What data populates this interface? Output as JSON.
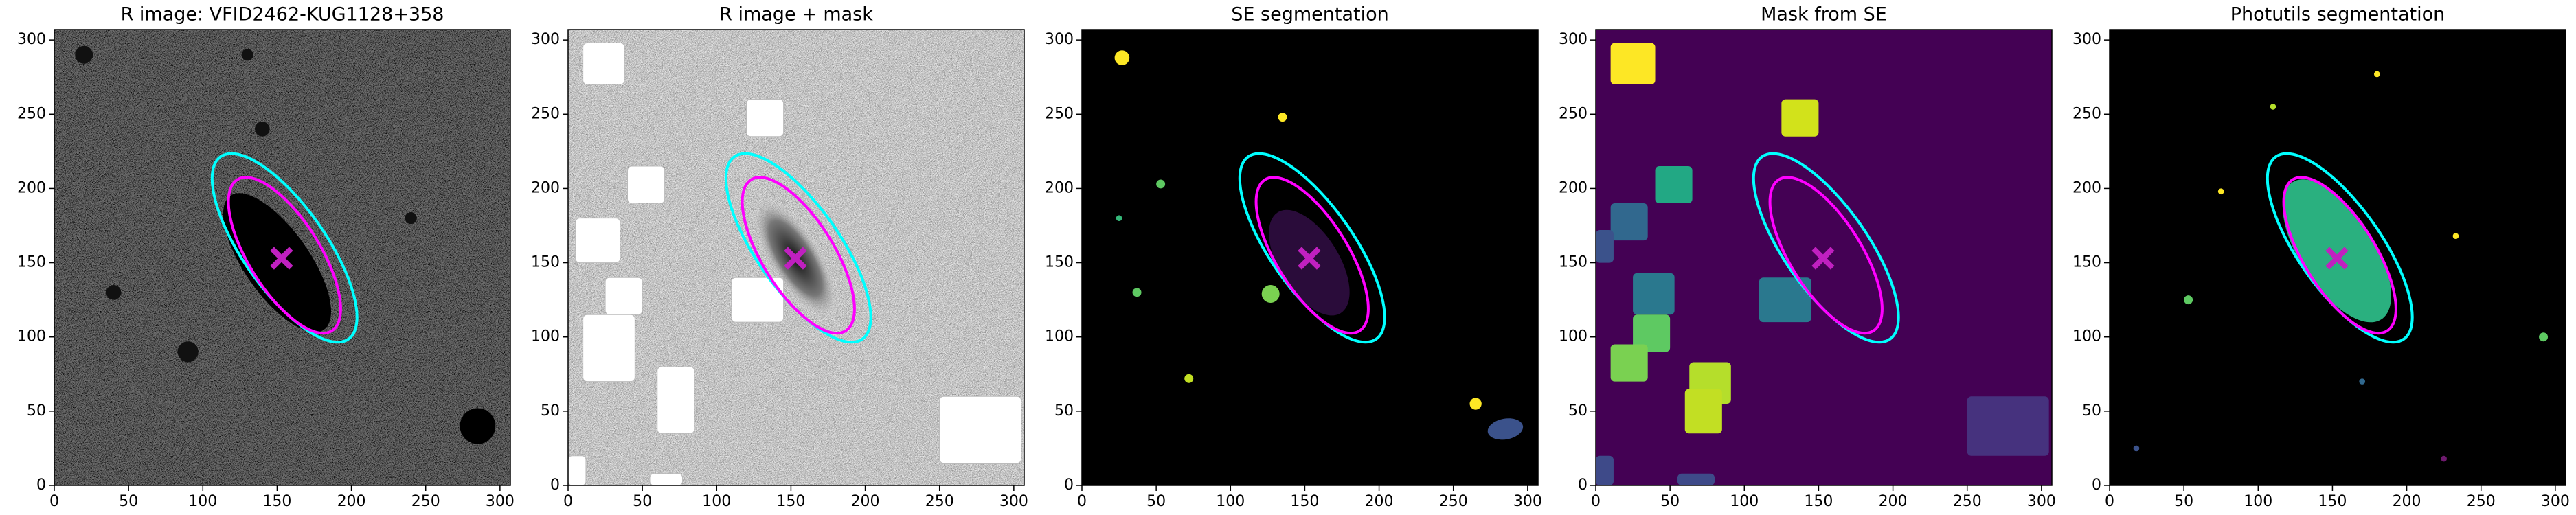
{
  "chart_data": [
    {
      "type": "image",
      "title": "R image: VFID2462-KUG1128+358",
      "background": "#6e6e6e",
      "xlim": [
        0,
        307
      ],
      "ylim": [
        0,
        307
      ],
      "xticks": [
        0,
        50,
        100,
        150,
        200,
        250,
        300
      ],
      "yticks": [
        0,
        50,
        100,
        150,
        200,
        250,
        300
      ],
      "ellipses": [
        {
          "color": "#00ffff",
          "cx": 155,
          "cy": 160,
          "a": 75,
          "b": 28,
          "angle": -55
        },
        {
          "color": "#ff00ff",
          "cx": 155,
          "cy": 155,
          "a": 60,
          "b": 24,
          "angle": -58
        }
      ],
      "marker": {
        "x": 153,
        "y": 153,
        "color": "#c020c0"
      }
    },
    {
      "type": "image",
      "title": "R image + mask",
      "background": "#e6e6e6",
      "xlim": [
        0,
        307
      ],
      "ylim": [
        0,
        307
      ],
      "xticks": [
        0,
        50,
        100,
        150,
        200,
        250,
        300
      ],
      "yticks": [
        0,
        50,
        100,
        150,
        200,
        250,
        300
      ],
      "ellipses": [
        {
          "color": "#00ffff",
          "cx": 155,
          "cy": 160,
          "a": 75,
          "b": 28,
          "angle": -55
        },
        {
          "color": "#ff00ff",
          "cx": 155,
          "cy": 155,
          "a": 60,
          "b": 24,
          "angle": -58
        }
      ],
      "marker": {
        "x": 153,
        "y": 153,
        "color": "#c020c0"
      }
    },
    {
      "type": "image",
      "title": "SE segmentation",
      "background": "#000000",
      "xlim": [
        0,
        307
      ],
      "ylim": [
        0,
        307
      ],
      "xticks": [
        0,
        50,
        100,
        150,
        200,
        250,
        300
      ],
      "yticks": [
        0,
        50,
        100,
        150,
        200,
        250,
        300
      ],
      "ellipses": [
        {
          "color": "#00ffff",
          "cx": 155,
          "cy": 160,
          "a": 75,
          "b": 28,
          "angle": -55
        },
        {
          "color": "#ff00ff",
          "cx": 155,
          "cy": 155,
          "a": 60,
          "b": 24,
          "angle": -58
        }
      ],
      "marker": {
        "x": 153,
        "y": 153,
        "color": "#c020c0"
      }
    },
    {
      "type": "image",
      "title": "Mask from SE",
      "background": "#440154",
      "xlim": [
        0,
        307
      ],
      "ylim": [
        0,
        307
      ],
      "xticks": [
        0,
        50,
        100,
        150,
        200,
        250,
        300
      ],
      "yticks": [
        0,
        50,
        100,
        150,
        200,
        250,
        300
      ],
      "ellipses": [
        {
          "color": "#00ffff",
          "cx": 155,
          "cy": 160,
          "a": 75,
          "b": 28,
          "angle": -55
        },
        {
          "color": "#ff00ff",
          "cx": 155,
          "cy": 155,
          "a": 60,
          "b": 24,
          "angle": -58
        }
      ],
      "marker": {
        "x": 153,
        "y": 153,
        "color": "#c020c0"
      }
    },
    {
      "type": "image",
      "title": "Photutils segmentation",
      "background": "#000000",
      "xlim": [
        0,
        307
      ],
      "ylim": [
        0,
        307
      ],
      "xticks": [
        0,
        50,
        100,
        150,
        200,
        250,
        300
      ],
      "yticks": [
        0,
        50,
        100,
        150,
        200,
        250,
        300
      ],
      "ellipses": [
        {
          "color": "#00ffff",
          "cx": 155,
          "cy": 160,
          "a": 75,
          "b": 28,
          "angle": -55
        },
        {
          "color": "#ff00ff",
          "cx": 155,
          "cy": 155,
          "a": 60,
          "b": 24,
          "angle": -58
        }
      ],
      "marker": {
        "x": 153,
        "y": 153,
        "color": "#c020c0"
      }
    }
  ]
}
